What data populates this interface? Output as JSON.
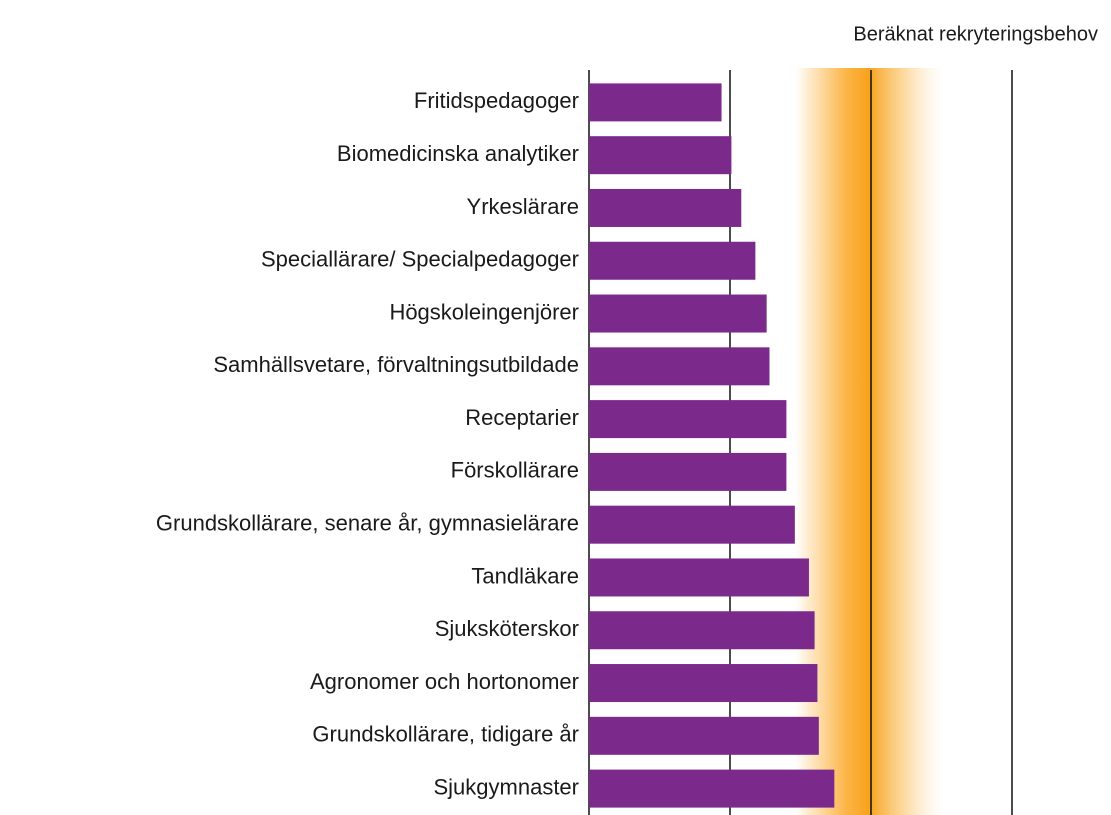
{
  "chart_data": {
    "type": "bar",
    "orientation": "horizontal",
    "title": "Beräknat rekryteringsbehov",
    "categories": [
      "Fritidspedagoger",
      "Biomedicinska analytiker",
      "Yrkeslärare",
      "Speciallärare/ Specialpedagoger",
      "Högskoleingenjörer",
      "Samhällsvetare, förvaltningsutbildade",
      "Receptarier",
      "Förskollärare",
      "Grundskollärare, senare år, gymnasielärare",
      "Tandläkare",
      "Sjuksköterskor",
      "Agronomer och hortonomer",
      "Grundskollärare, tidigare år",
      "Sjukgymnaster"
    ],
    "values": [
      0.94,
      1.01,
      1.08,
      1.18,
      1.26,
      1.28,
      1.4,
      1.4,
      1.46,
      1.56,
      1.6,
      1.62,
      1.63,
      1.74
    ],
    "color": "#7b2a8c",
    "xlim": [
      0,
      3
    ],
    "xticks": [
      0,
      1,
      2,
      3
    ],
    "grid": true
  }
}
